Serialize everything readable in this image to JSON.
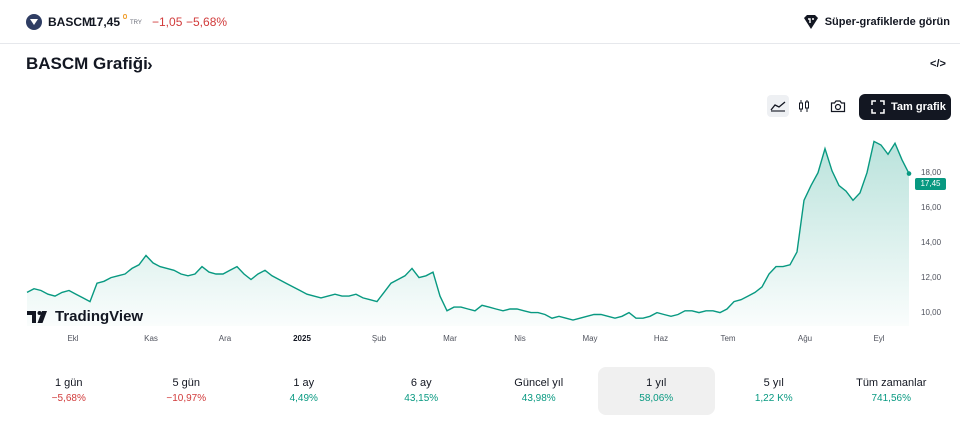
{
  "header": {
    "symbol": "BASCM",
    "price": "17,45",
    "currency": "TRY",
    "change": "−1,05",
    "change_pct": "−5,68%",
    "super_charts_label": "Süper-grafiklerde görün"
  },
  "chart_section": {
    "title": "BASCM Grafiği",
    "title_chevron": "›",
    "embed_label": "</>",
    "full_chart_label": "Tam grafik",
    "tradingview_label": "TradingView"
  },
  "chart_data": {
    "type": "area",
    "x_labels": [
      "Ekl",
      "Kas",
      "Ara",
      "2025",
      "Şub",
      "Mar",
      "Nis",
      "May",
      "Haz",
      "Tem",
      "Ağu",
      "Eyl"
    ],
    "y_ticks": [
      "10,00",
      "12,00",
      "14,00",
      "16,00",
      "18,00"
    ],
    "ylim": [
      9.5,
      19.6
    ],
    "last_price": "17,45",
    "x": [
      0,
      2,
      4,
      6,
      8,
      10,
      12,
      14,
      16,
      18,
      20,
      22,
      24,
      26,
      28,
      30,
      32,
      34,
      36,
      38,
      40,
      42,
      44,
      46,
      48,
      50,
      52,
      54,
      56,
      58,
      60,
      62,
      64,
      66,
      68,
      70,
      72,
      74,
      76,
      78,
      80,
      82,
      84,
      86,
      88,
      90,
      92,
      94,
      96,
      98,
      100,
      102,
      104,
      106,
      108,
      110,
      112,
      114,
      116,
      118,
      120,
      122,
      124,
      126,
      128,
      130,
      132,
      134,
      136,
      138,
      140,
      142,
      144,
      146,
      148,
      150,
      152,
      154,
      156,
      158,
      160,
      162,
      164,
      166,
      168,
      170,
      172,
      174,
      176,
      178,
      180,
      182,
      184,
      186,
      188,
      190,
      192,
      194,
      196,
      198,
      200,
      202,
      204,
      206,
      208,
      210,
      212,
      214,
      216,
      218,
      220,
      222,
      224,
      226,
      228,
      230,
      232,
      234,
      236,
      238,
      240,
      242,
      244,
      246,
      248,
      250,
      252
    ],
    "values": [
      11.0,
      11.2,
      11.1,
      10.9,
      10.8,
      11.0,
      11.1,
      10.9,
      10.7,
      10.5,
      11.5,
      11.6,
      11.8,
      11.9,
      12.0,
      12.3,
      12.5,
      13.0,
      12.6,
      12.4,
      12.3,
      12.2,
      12.0,
      11.9,
      12.0,
      12.4,
      12.1,
      12.0,
      12.0,
      12.2,
      12.4,
      12.0,
      11.7,
      12.0,
      12.2,
      11.9,
      11.7,
      11.5,
      11.3,
      11.1,
      10.9,
      10.8,
      10.7,
      10.8,
      10.9,
      10.8,
      10.8,
      10.9,
      10.7,
      10.6,
      10.5,
      11.0,
      11.5,
      11.7,
      11.9,
      12.3,
      11.8,
      11.9,
      12.1,
      10.8,
      10.0,
      10.2,
      10.2,
      10.1,
      10.0,
      10.3,
      10.2,
      10.1,
      10.0,
      10.1,
      10.1,
      10.0,
      9.9,
      9.9,
      9.8,
      9.6,
      9.7,
      9.6,
      9.5,
      9.6,
      9.7,
      9.8,
      9.8,
      9.7,
      9.6,
      9.7,
      9.9,
      9.6,
      9.6,
      9.7,
      9.9,
      9.8,
      9.7,
      9.8,
      10.0,
      10.0,
      9.9,
      10.0,
      10.0,
      9.9,
      10.1,
      10.5,
      10.6,
      10.8,
      11.0,
      11.3,
      12.0,
      12.4,
      12.4,
      12.5,
      13.2,
      16.0,
      16.8,
      17.5,
      18.8,
      17.6,
      16.8,
      16.5,
      16.0,
      16.4,
      17.5,
      19.2,
      19.0,
      18.5,
      19.1,
      18.2,
      17.45
    ],
    "line_color": "#089981",
    "area_color": "#089981",
    "tag_color": "#089981"
  },
  "periods": [
    {
      "label": "1 gün",
      "value": "−5,68%",
      "dir": "neg"
    },
    {
      "label": "5 gün",
      "value": "−10,97%",
      "dir": "neg"
    },
    {
      "label": "1 ay",
      "value": "4,49%",
      "dir": "pos"
    },
    {
      "label": "6 ay",
      "value": "43,15%",
      "dir": "pos"
    },
    {
      "label": "Güncel yıl",
      "value": "43,98%",
      "dir": "pos"
    },
    {
      "label": "1 yıl",
      "value": "58,06%",
      "dir": "pos"
    },
    {
      "label": "5 yıl",
      "value": "1,22 K%",
      "dir": "pos"
    },
    {
      "label": "Tüm zamanlar",
      "value": "741,56%",
      "dir": "pos"
    }
  ],
  "active_period": "1 yıl"
}
